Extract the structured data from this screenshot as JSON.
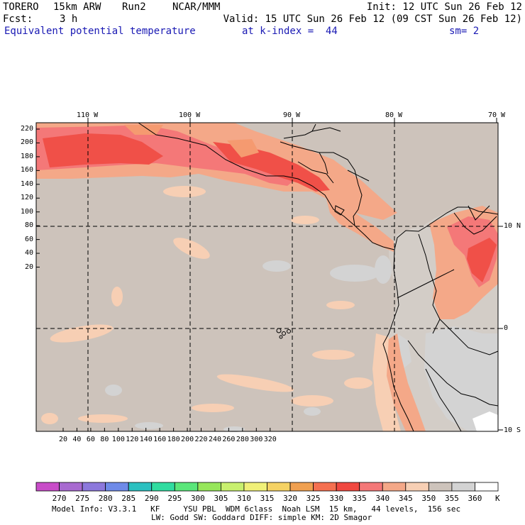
{
  "header": {
    "model": "TORERO",
    "resolution": "15km ARW",
    "run": "Run2",
    "org": "NCAR/MMM",
    "init": "Init: 12 UTC Sun 26 Feb 12",
    "fcst_label": "Fcst:",
    "fcst_value": "3 h",
    "valid": "Valid: 15 UTC Sun 26 Feb 12 (09 CST Sun 26 Feb 12)",
    "field": "Equivalent potential temperature",
    "level": "at k-index =  44",
    "smooth": "sm= 2"
  },
  "map": {
    "lon_labels": [
      "110 W",
      "100 W",
      "90 W",
      "80 W",
      "70 W"
    ],
    "lat_labels": [
      "10 N",
      "0",
      "10 S"
    ],
    "y_ticks": [
      "220",
      "200",
      "180",
      "160",
      "140",
      "120",
      "100",
      "80",
      "60",
      "40",
      "20"
    ],
    "x_ticks": [
      "20",
      "40",
      "60",
      "80",
      "100",
      "120",
      "140",
      "160",
      "180",
      "200",
      "220",
      "240",
      "260",
      "280",
      "300",
      "320"
    ],
    "bg_color": "#cdc3bb",
    "land_color": "#d0c6be"
  },
  "colorbar": {
    "levels": [
      "270",
      "275",
      "280",
      "285",
      "290",
      "295",
      "300",
      "305",
      "310",
      "315",
      "320",
      "325",
      "330",
      "335",
      "340",
      "345",
      "350",
      "355",
      "360"
    ],
    "unit": "K",
    "colors": [
      "#c84cc8",
      "#a86ad0",
      "#8c78dc",
      "#6e8ae8",
      "#2cc0c0",
      "#30dca0",
      "#5ae67a",
      "#96e65a",
      "#c8f06e",
      "#f0f078",
      "#f5d264",
      "#f0a050",
      "#f57050",
      "#f04840",
      "#f47878",
      "#f4a888",
      "#f7cfb4",
      "#cdc3bb",
      "#d3d3d3",
      "#ffffff"
    ]
  },
  "footer": {
    "line1": "Model Info: V3.3.1   KF     YSU PBL  WDM 6class  Noah LSM  15 km,   44 levels,  156 sec",
    "line2": "LW: Godd SW: Goddard DIFF: simple KM: 2D Smagor"
  }
}
